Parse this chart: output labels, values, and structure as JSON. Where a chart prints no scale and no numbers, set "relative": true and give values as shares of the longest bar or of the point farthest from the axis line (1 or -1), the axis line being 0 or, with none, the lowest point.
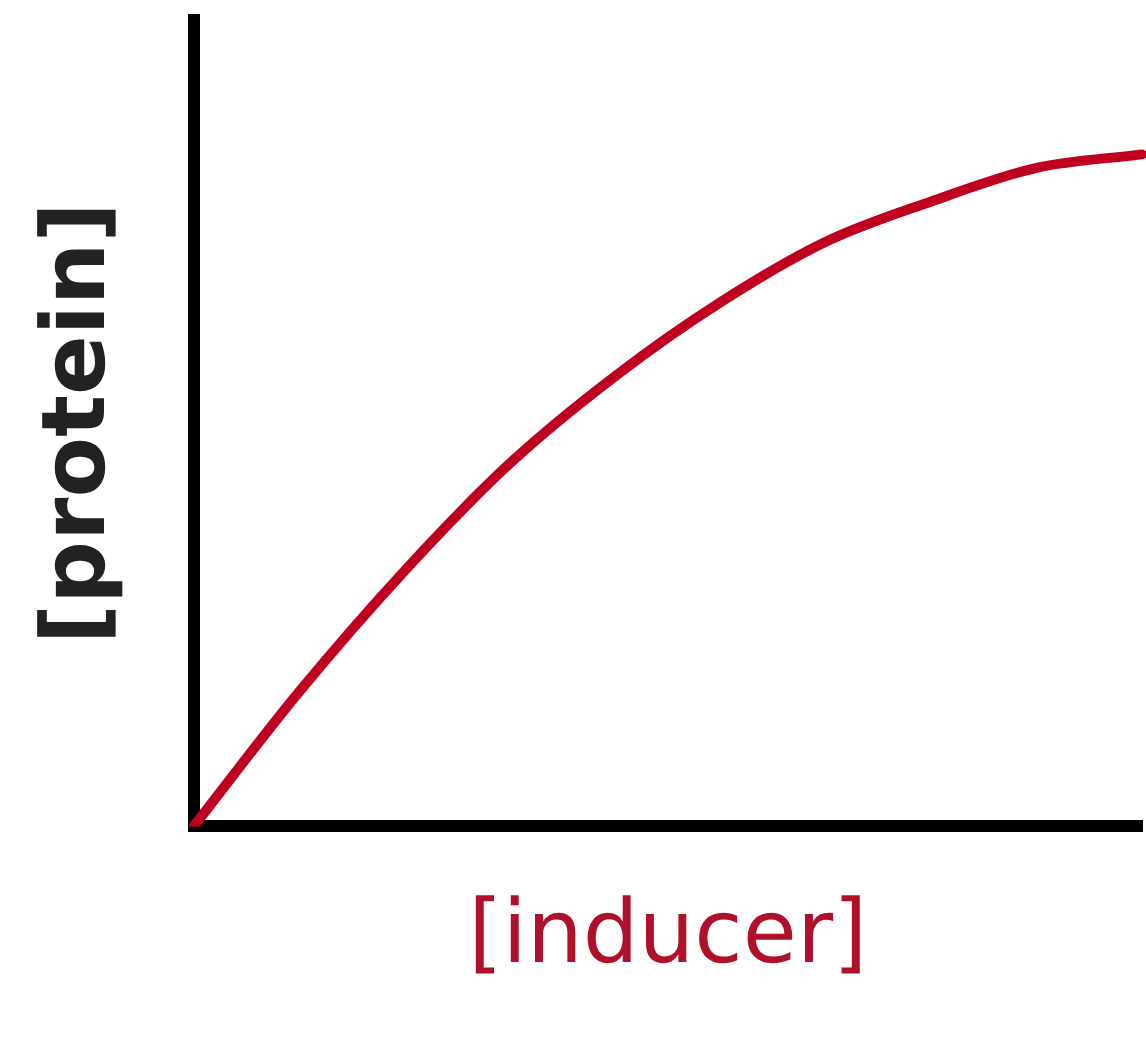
{
  "chart_data": {
    "type": "line",
    "relative": true,
    "xlabel": "[inducer]",
    "ylabel": "[protein]",
    "categories": [
      null,
      null,
      null,
      null,
      null,
      null,
      null,
      null,
      null,
      null
    ],
    "series": [
      {
        "color": "#c00020",
        "values": [
          0,
          0.2,
          0.38,
          0.54,
          0.67,
          0.78,
          0.87,
          0.93,
          0.98,
          1
        ]
      }
    ],
    "grid": false,
    "legend": false,
    "marker": "none",
    "line_style": "solid"
  }
}
